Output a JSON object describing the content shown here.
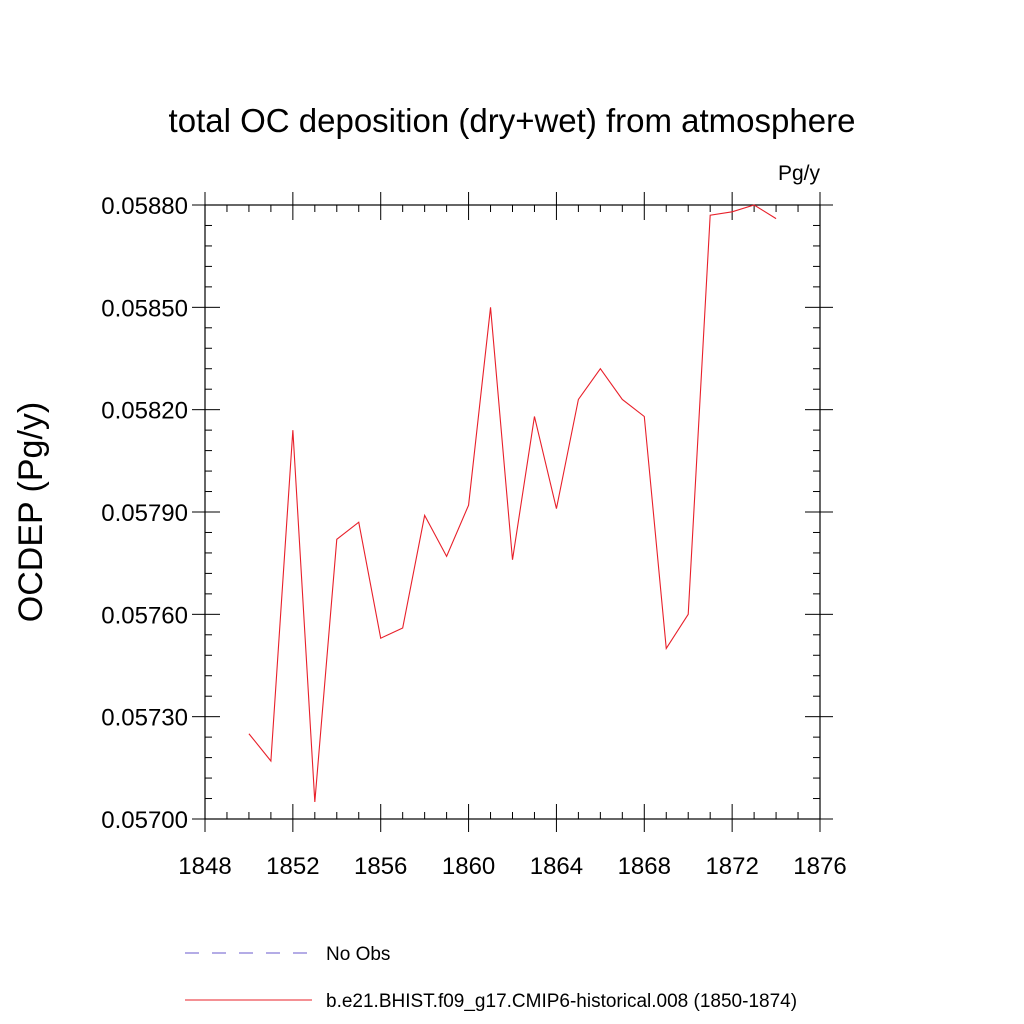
{
  "chart_data": {
    "type": "line",
    "title": "total OC deposition (dry+wet) from atmosphere",
    "units": "Pg/y",
    "xlabel": "",
    "ylabel": "OCDEP  (Pg/y)",
    "xlim": [
      1848,
      1876
    ],
    "ylim": [
      0.057,
      0.0588
    ],
    "x_ticks": [
      1848,
      1852,
      1856,
      1860,
      1864,
      1868,
      1872,
      1876
    ],
    "x_tick_labels": [
      "1848",
      "1852",
      "1856",
      "1860",
      "1864",
      "1868",
      "1872",
      "1876"
    ],
    "y_ticks": [
      0.057,
      0.0573,
      0.0576,
      0.0579,
      0.0582,
      0.0585,
      0.0588
    ],
    "y_tick_labels": [
      "0.05700",
      "0.05730",
      "0.05760",
      "0.05790",
      "0.05820",
      "0.05850",
      "0.05880"
    ],
    "series": [
      {
        "name": "b.e21.BHIST.f09_g17.CMIP6-historical.008 (1850-1874)",
        "color": "#e8202a",
        "style": "solid",
        "x": [
          1850,
          1851,
          1852,
          1853,
          1854,
          1855,
          1856,
          1857,
          1858,
          1859,
          1860,
          1861,
          1862,
          1863,
          1864,
          1865,
          1866,
          1867,
          1868,
          1869,
          1870,
          1871,
          1872,
          1873,
          1874
        ],
        "values": [
          0.05725,
          0.05717,
          0.05814,
          0.05705,
          0.05782,
          0.05787,
          0.05753,
          0.05756,
          0.05789,
          0.05777,
          0.05792,
          0.0585,
          0.05776,
          0.05818,
          0.05791,
          0.05823,
          0.05832,
          0.05823,
          0.05818,
          0.0575,
          0.0576,
          0.05877,
          0.05878,
          0.0588,
          0.05876
        ]
      }
    ],
    "legend": [
      {
        "label": "No Obs",
        "color": "#6a5acd",
        "style": "dashed"
      },
      {
        "label": "b.e21.BHIST.f09_g17.CMIP6-historical.008 (1850-1874)",
        "color": "#e8202a",
        "style": "solid"
      }
    ]
  }
}
